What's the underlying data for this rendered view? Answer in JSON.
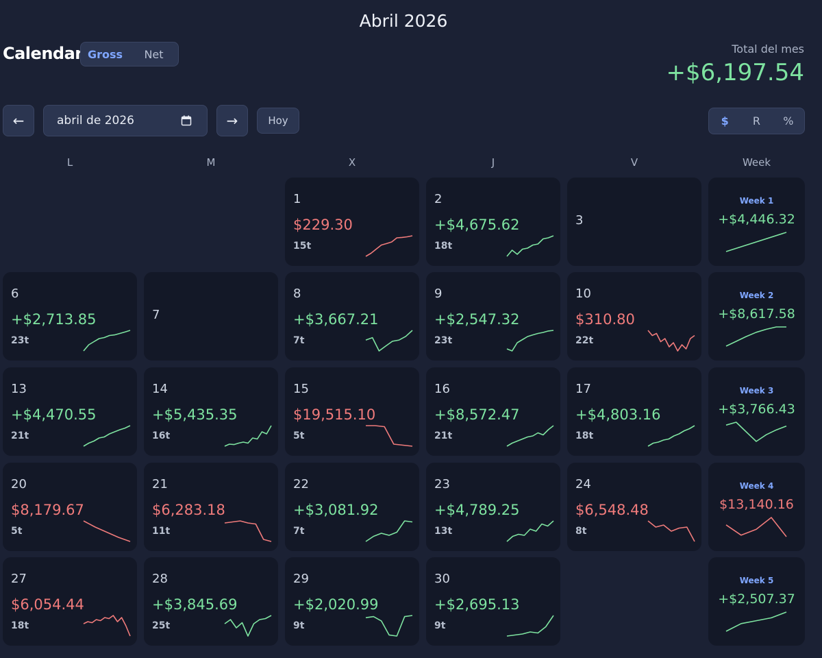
{
  "header": {
    "month_title": "Abril 2026",
    "calendar_title": "Calendar",
    "mode_tabs": [
      {
        "label": "Gross",
        "active": true
      },
      {
        "label": "Net",
        "active": false
      }
    ],
    "total_label": "Total del mes",
    "total_value": "+$6,197.54"
  },
  "toolbar": {
    "prev_label": "←",
    "next_label": "→",
    "month_value": "abril de 2026",
    "today_label": "Hoy",
    "unit_tabs": [
      {
        "label": "$",
        "active": true
      },
      {
        "label": "R",
        "active": false
      },
      {
        "label": "%",
        "active": false
      }
    ]
  },
  "weekday_headers": [
    "L",
    "M",
    "X",
    "J",
    "V",
    "Week"
  ],
  "colors": {
    "positive": "#7ee3a0",
    "negative": "#f07b7b",
    "accent": "#7fa6ff"
  },
  "days": [
    {
      "day": "1",
      "value": "$229.30",
      "trades": "15t",
      "trend": "negative",
      "spark": [
        0,
        0.15,
        0.35,
        0.55,
        0.62,
        0.7,
        0.9,
        0.92,
        0.95,
        1
      ]
    },
    {
      "day": "2",
      "value": "+$4,675.62",
      "trades": "18t",
      "trend": "positive",
      "spark": [
        0,
        0.3,
        0.1,
        0.35,
        0.4,
        0.55,
        0.6,
        0.85,
        0.9,
        1
      ]
    },
    {
      "day": "3",
      "value": "",
      "trades": "",
      "trend": "none",
      "spark": []
    },
    {
      "day": "6",
      "value": "+$2,713.85",
      "trades": "23t",
      "trend": "positive",
      "spark": [
        0,
        0.3,
        0.45,
        0.6,
        0.65,
        0.75,
        0.78,
        0.85,
        0.92,
        1
      ]
    },
    {
      "day": "7",
      "value": "",
      "trades": "",
      "trend": "none",
      "spark": []
    },
    {
      "day": "8",
      "value": "+$3,667.21",
      "trades": "7t",
      "trend": "positive",
      "spark": [
        0.6,
        0.7,
        0.15,
        0.35,
        0.55,
        0.6,
        0.75,
        1
      ]
    },
    {
      "day": "9",
      "value": "+$2,547.32",
      "trades": "23t",
      "trend": "positive",
      "spark": [
        0.1,
        0,
        0.4,
        0.55,
        0.7,
        0.78,
        0.85,
        0.9,
        0.97,
        1
      ]
    },
    {
      "day": "10",
      "value": "$310.80",
      "trades": "22t",
      "trend": "negative",
      "spark": [
        1,
        0.75,
        0.85,
        0.45,
        0.6,
        0.2,
        0.4,
        0,
        0.3,
        0.1,
        0.6,
        0.75
      ]
    },
    {
      "day": "13",
      "value": "+$4,470.55",
      "trades": "21t",
      "trend": "positive",
      "spark": [
        0,
        0.15,
        0.25,
        0.4,
        0.45,
        0.6,
        0.7,
        0.8,
        0.88,
        1
      ]
    },
    {
      "day": "14",
      "value": "+$5,435.35",
      "trades": "16t",
      "trend": "positive",
      "spark": [
        0,
        0.1,
        0.08,
        0.15,
        0.2,
        0.15,
        0.4,
        0.35,
        0.7,
        0.6,
        1
      ]
    },
    {
      "day": "15",
      "value": "$19,515.10",
      "trades": "5t",
      "trend": "negative",
      "spark": [
        1,
        1,
        0.95,
        0.1,
        0.05,
        0
      ]
    },
    {
      "day": "16",
      "value": "+$8,572.47",
      "trades": "21t",
      "trend": "positive",
      "spark": [
        0,
        0.15,
        0.25,
        0.35,
        0.45,
        0.5,
        0.65,
        0.55,
        0.8,
        1
      ]
    },
    {
      "day": "17",
      "value": "+$4,803.16",
      "trades": "18t",
      "trend": "positive",
      "spark": [
        0,
        0.15,
        0.2,
        0.3,
        0.35,
        0.5,
        0.6,
        0.75,
        0.85,
        1
      ]
    },
    {
      "day": "20",
      "value": "$8,179.67",
      "trades": "5t",
      "trend": "negative",
      "spark": [
        1,
        0.7,
        0.45,
        0.2,
        0
      ]
    },
    {
      "day": "21",
      "value": "$6,283.18",
      "trades": "11t",
      "trend": "negative",
      "spark": [
        0.9,
        0.95,
        1,
        0.9,
        0.85,
        0.1,
        0
      ]
    },
    {
      "day": "22",
      "value": "+$3,081.92",
      "trades": "7t",
      "trend": "positive",
      "spark": [
        0,
        0.25,
        0.4,
        0.3,
        0.45,
        1,
        0.95
      ]
    },
    {
      "day": "23",
      "value": "+$4,789.25",
      "trades": "13t",
      "trend": "positive",
      "spark": [
        0,
        0.25,
        0.35,
        0.3,
        0.6,
        0.5,
        0.85,
        0.75,
        1
      ]
    },
    {
      "day": "24",
      "value": "$6,548.48",
      "trades": "8t",
      "trend": "negative",
      "spark": [
        1,
        0.7,
        0.8,
        0.5,
        0.65,
        0.7,
        0
      ]
    },
    {
      "day": "27",
      "value": "$6,054.44",
      "trades": "18t",
      "trend": "negative",
      "spark": [
        0.6,
        0.7,
        0.65,
        0.8,
        0.75,
        0.9,
        0.85,
        1,
        0.7,
        0.9,
        0.5,
        0
      ]
    },
    {
      "day": "28",
      "value": "+$3,845.69",
      "trades": "25t",
      "trend": "positive",
      "spark": [
        0.6,
        0.8,
        0.4,
        0.65,
        0,
        0.6,
        0.8,
        0.85,
        1
      ]
    },
    {
      "day": "29",
      "value": "+$2,020.99",
      "trades": "9t",
      "trend": "positive",
      "spark": [
        0.85,
        0.9,
        0.7,
        0.05,
        0,
        0.9,
        0.95
      ]
    },
    {
      "day": "30",
      "value": "+$2,695.13",
      "trades": "9t",
      "trend": "positive",
      "spark": [
        0,
        0.05,
        0.1,
        0.2,
        0.15,
        0.45,
        1
      ]
    }
  ],
  "weeks": [
    {
      "label": "Week 1",
      "value": "+$4,446.32",
      "trend": "positive",
      "spark": [
        0,
        1
      ]
    },
    {
      "label": "Week 2",
      "value": "+$8,617.58",
      "trend": "positive",
      "spark": [
        0,
        0.25,
        0.5,
        0.72,
        0.88,
        1,
        1
      ]
    },
    {
      "label": "Week 3",
      "value": "+$3,766.43",
      "trend": "positive",
      "spark": [
        0.85,
        1,
        0.5,
        0,
        0.35,
        0.6,
        0.8
      ]
    },
    {
      "label": "Week 4",
      "value": "$13,140.16",
      "trend": "negative",
      "spark": [
        1,
        0.3,
        0.7,
        1.5,
        0.2
      ]
    },
    {
      "label": "Week 5",
      "value": "+$2,507.37",
      "trend": "positive",
      "spark": [
        0,
        0.4,
        0.55,
        0.7,
        1
      ]
    }
  ]
}
